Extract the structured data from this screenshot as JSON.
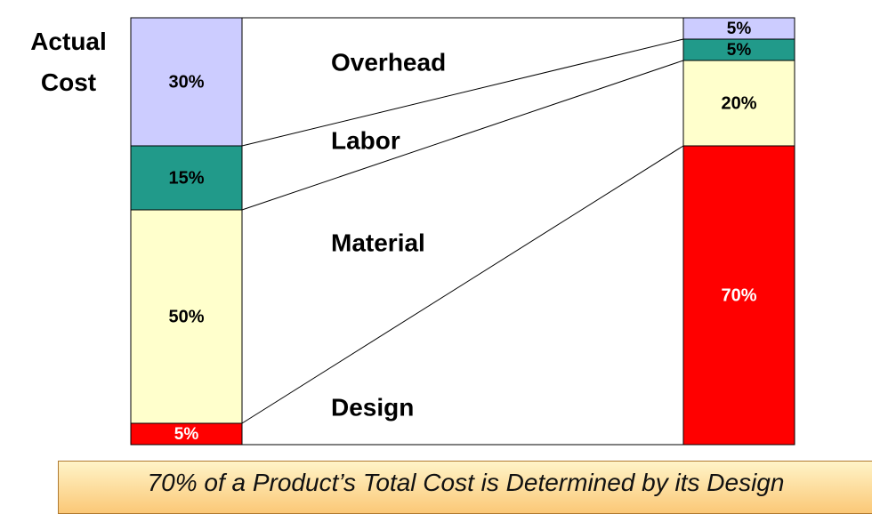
{
  "chart_data": {
    "type": "stacked_bar",
    "categories": [
      "Actual Cost",
      null
    ],
    "ylim": [
      0,
      100
    ],
    "series": [
      {
        "name": "Design",
        "color": "#ff0000",
        "values": [
          5,
          70
        ],
        "value_labels": [
          "5%",
          "70%"
        ]
      },
      {
        "name": "Material",
        "color": "#ffffcc",
        "values": [
          50,
          20
        ],
        "value_labels": [
          "50%",
          "20%"
        ]
      },
      {
        "name": "Labor",
        "color": "#219a8a",
        "values": [
          15,
          5
        ],
        "value_labels": [
          "15%",
          "5%"
        ]
      },
      {
        "name": "Overhead",
        "color": "#ccccff",
        "values": [
          30,
          5
        ],
        "value_labels": [
          "30%",
          "5%"
        ]
      }
    ],
    "annotation": "70% of a Product’s Total Cost is Determined by its Design"
  }
}
